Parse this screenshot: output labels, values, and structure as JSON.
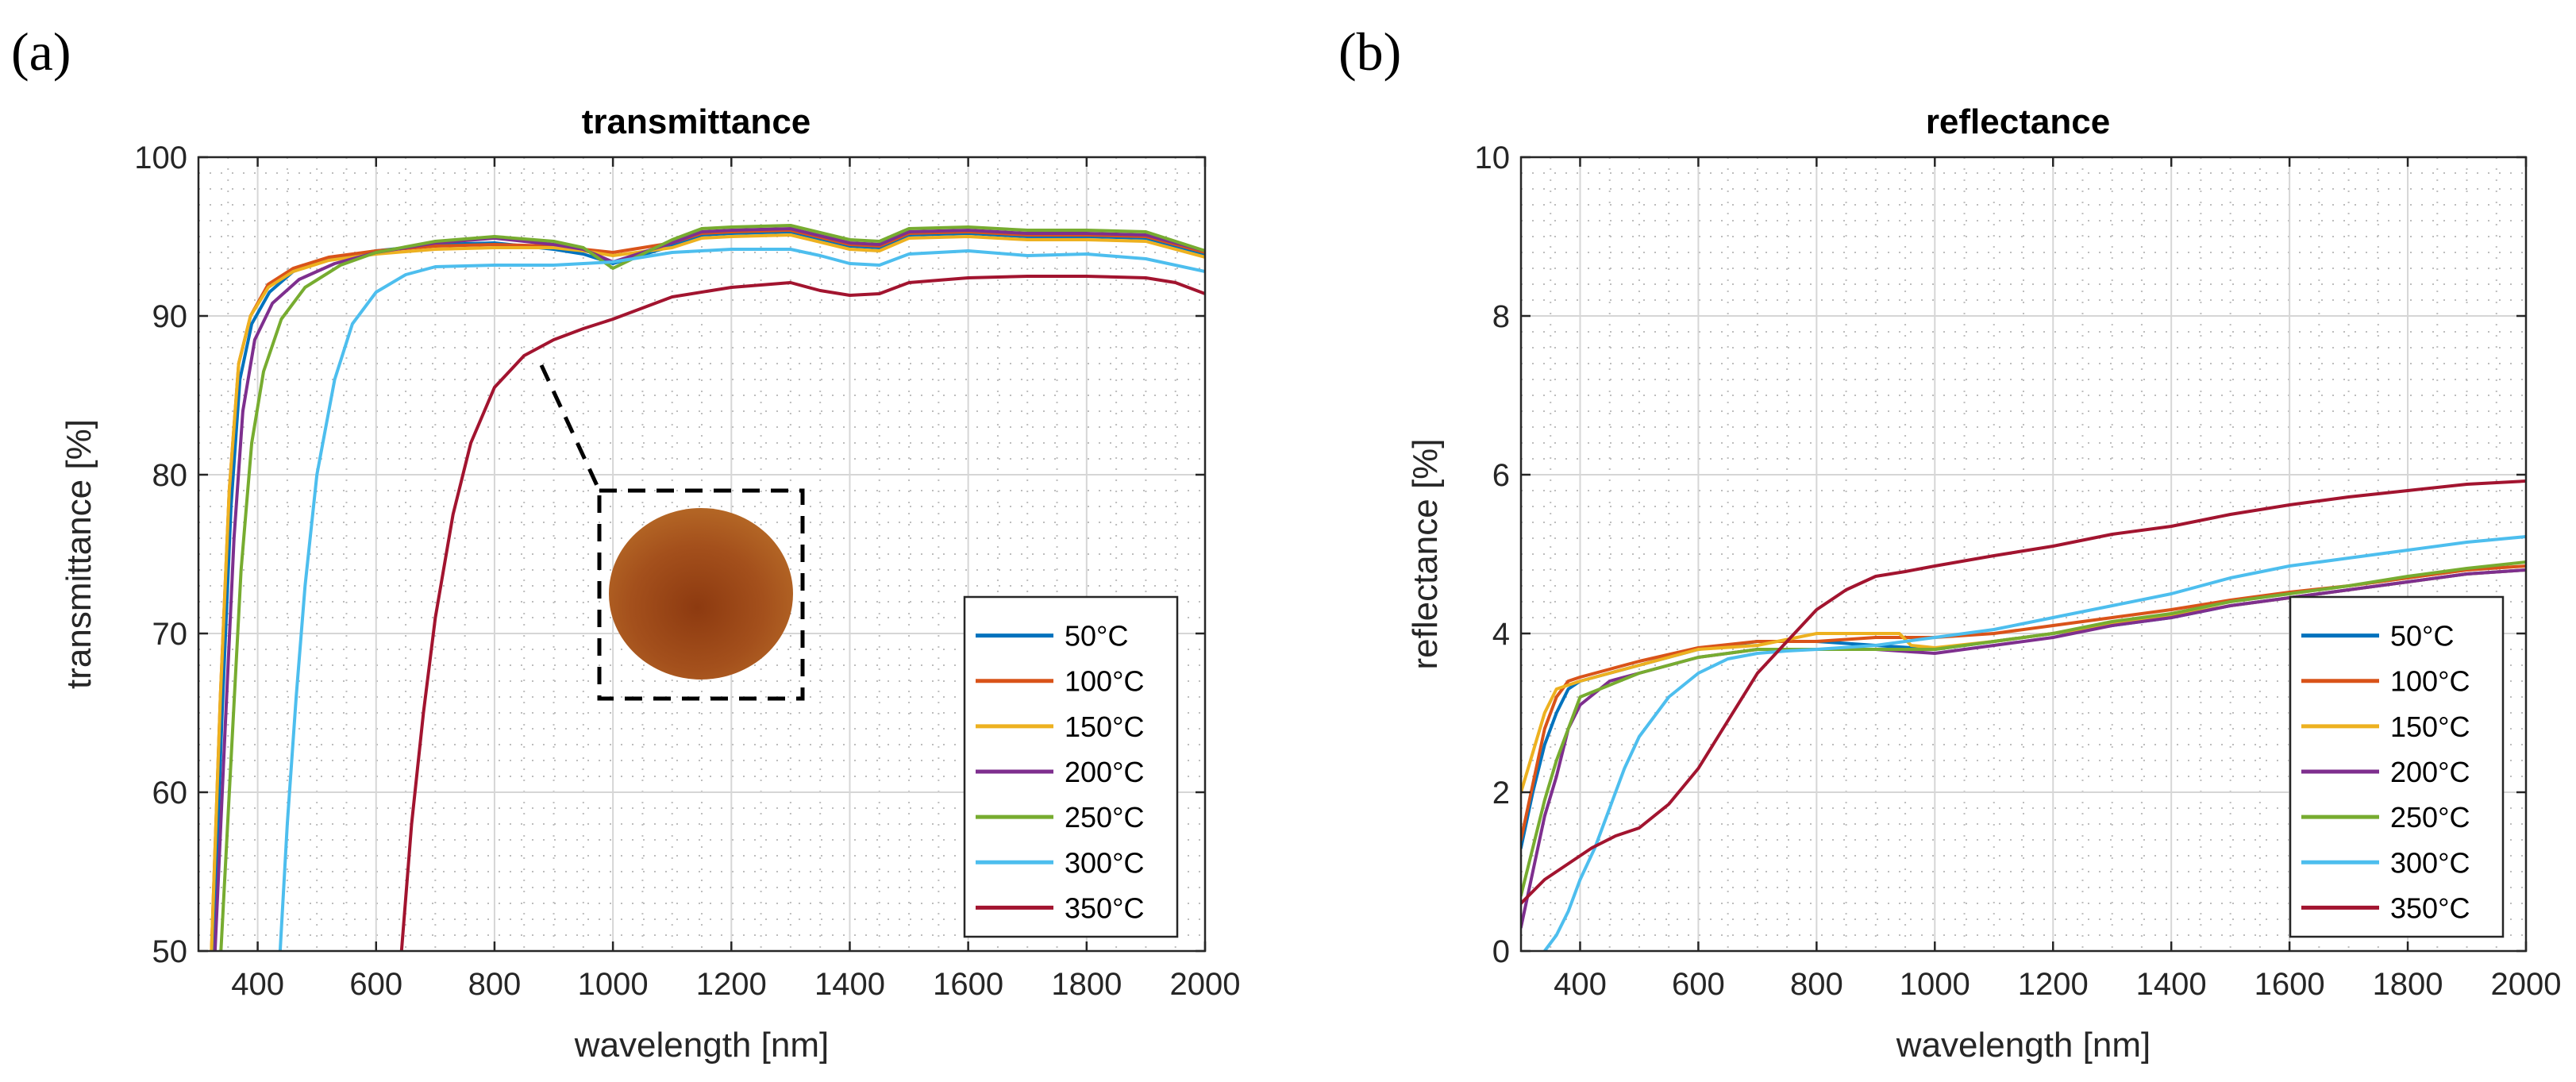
{
  "panels": {
    "a_label": "(a)",
    "b_label": "(b)"
  },
  "colors": {
    "50°C": "#0072bd",
    "100°C": "#d95319",
    "150°C": "#edb120",
    "200°C": "#7e2f8e",
    "250°C": "#77ac30",
    "300°C": "#4dbeee",
    "350°C": "#a2142f"
  },
  "chart_data": [
    {
      "type": "line",
      "title": "transmittance",
      "xlabel": "wavelength [nm]",
      "ylabel": "transmittance [%]",
      "xlim": [
        300,
        2000
      ],
      "ylim": [
        50,
        100
      ],
      "xticks": [
        400,
        600,
        800,
        1000,
        1200,
        1400,
        1600,
        1800,
        2000
      ],
      "yticks": [
        50,
        60,
        70,
        80,
        90,
        100
      ],
      "legend_position": "bottom-right",
      "inset": "photo of reddish-brown circular film sample",
      "series": [
        {
          "name": "50°C",
          "x": [
            325,
            340,
            355,
            370,
            390,
            420,
            460,
            520,
            600,
            700,
            800,
            900,
            950,
            1000,
            1100,
            1150,
            1200,
            1300,
            1400,
            1450,
            1500,
            1600,
            1700,
            1800,
            1900,
            2000
          ],
          "y": [
            50,
            65,
            78,
            86,
            89.5,
            91.5,
            92.8,
            93.6,
            94.1,
            94.5,
            94.6,
            94.2,
            93.9,
            93.3,
            94.4,
            95.1,
            95.2,
            95.3,
            94.4,
            94.3,
            95.1,
            95.2,
            95,
            95,
            94.9,
            93.9
          ]
        },
        {
          "name": "100°C",
          "x": [
            322,
            337,
            352,
            368,
            388,
            418,
            460,
            520,
            600,
            700,
            800,
            900,
            950,
            1000,
            1100,
            1150,
            1200,
            1300,
            1400,
            1450,
            1500,
            1600,
            1700,
            1800,
            1900,
            2000
          ],
          "y": [
            50,
            66,
            79,
            87,
            90,
            92,
            93,
            93.7,
            94.1,
            94.4,
            94.5,
            94.4,
            94.2,
            94,
            94.6,
            95.2,
            95.3,
            95.4,
            94.5,
            94.4,
            95.2,
            95.3,
            95.1,
            95.1,
            95,
            94
          ]
        },
        {
          "name": "150°C",
          "x": [
            322,
            337,
            352,
            368,
            388,
            418,
            460,
            520,
            600,
            700,
            800,
            900,
            950,
            1000,
            1100,
            1150,
            1200,
            1300,
            1400,
            1450,
            1500,
            1600,
            1700,
            1800,
            1900,
            2000
          ],
          "y": [
            50,
            66,
            79,
            87,
            90,
            91.8,
            92.8,
            93.5,
            93.9,
            94.2,
            94.3,
            94.3,
            94.1,
            93.8,
            94.3,
            94.9,
            95,
            95.1,
            94.2,
            94.1,
            94.9,
            95,
            94.8,
            94.8,
            94.7,
            93.7
          ]
        },
        {
          "name": "200°C",
          "x": [
            328,
            345,
            360,
            375,
            395,
            425,
            470,
            530,
            600,
            700,
            800,
            900,
            950,
            1000,
            1100,
            1150,
            1200,
            1300,
            1400,
            1450,
            1500,
            1600,
            1700,
            1800,
            1900,
            2000
          ],
          "y": [
            50,
            64,
            76,
            84,
            88.5,
            90.8,
            92.3,
            93.3,
            94,
            94.6,
            94.9,
            94.5,
            94.2,
            93.4,
            94.6,
            95.3,
            95.4,
            95.5,
            94.6,
            94.5,
            95.3,
            95.4,
            95.2,
            95.2,
            95.1,
            94.1
          ]
        },
        {
          "name": "250°C",
          "x": [
            338,
            355,
            372,
            390,
            410,
            440,
            480,
            540,
            600,
            700,
            800,
            900,
            950,
            1000,
            1100,
            1150,
            1200,
            1300,
            1400,
            1450,
            1500,
            1600,
            1700,
            1800,
            1900,
            2000
          ],
          "y": [
            50,
            62,
            74,
            82,
            86.5,
            89.8,
            91.8,
            93.2,
            94,
            94.7,
            95,
            94.7,
            94.3,
            93,
            94.8,
            95.5,
            95.6,
            95.7,
            94.8,
            94.7,
            95.5,
            95.6,
            95.4,
            95.4,
            95.3,
            94.1
          ]
        },
        {
          "name": "300°C",
          "x": [
            438,
            450,
            465,
            480,
            500,
            530,
            560,
            600,
            650,
            700,
            800,
            900,
            950,
            1000,
            1100,
            1200,
            1300,
            1350,
            1400,
            1450,
            1500,
            1600,
            1700,
            1800,
            1900,
            2000
          ],
          "y": [
            50,
            58,
            66,
            73,
            80,
            86,
            89.5,
            91.5,
            92.6,
            93.1,
            93.2,
            93.2,
            93.3,
            93.4,
            94,
            94.2,
            94.2,
            93.8,
            93.3,
            93.2,
            93.9,
            94.1,
            93.8,
            93.9,
            93.6,
            92.8
          ]
        },
        {
          "name": "350°C",
          "x": [
            643,
            660,
            680,
            700,
            730,
            760,
            800,
            850,
            900,
            950,
            1000,
            1100,
            1200,
            1300,
            1350,
            1400,
            1450,
            1500,
            1600,
            1700,
            1800,
            1900,
            1950,
            2000
          ],
          "y": [
            50,
            58,
            65,
            71,
            77.5,
            82,
            85.5,
            87.5,
            88.5,
            89.2,
            89.8,
            91.2,
            91.8,
            92.1,
            91.6,
            91.3,
            91.4,
            92.1,
            92.4,
            92.5,
            92.5,
            92.4,
            92.1,
            91.4
          ]
        }
      ]
    },
    {
      "type": "line",
      "title": "reflectance",
      "xlabel": "wavelength [nm]",
      "ylabel": "reflectance [%]",
      "xlim": [
        300,
        2000
      ],
      "ylim": [
        0,
        10
      ],
      "xticks": [
        400,
        600,
        800,
        1000,
        1200,
        1400,
        1600,
        1800,
        2000
      ],
      "yticks": [
        0,
        2,
        4,
        6,
        8,
        10
      ],
      "legend_position": "bottom-right",
      "series": [
        {
          "name": "50°C",
          "x": [
            300,
            320,
            340,
            360,
            380,
            400,
            450,
            500,
            600,
            700,
            800,
            900,
            1000,
            1100,
            1200,
            1300,
            1400,
            1500,
            1600,
            1700,
            1800,
            1900,
            2000
          ],
          "y": [
            1.3,
            2.0,
            2.6,
            3.0,
            3.3,
            3.4,
            3.5,
            3.6,
            3.8,
            3.9,
            3.9,
            3.85,
            3.8,
            3.9,
            4.0,
            4.1,
            4.2,
            4.35,
            4.45,
            4.55,
            4.65,
            4.75,
            4.8
          ]
        },
        {
          "name": "100°C",
          "x": [
            300,
            320,
            340,
            360,
            380,
            400,
            450,
            500,
            600,
            700,
            800,
            900,
            1000,
            1100,
            1200,
            1300,
            1400,
            1500,
            1600,
            1700,
            1800,
            1900,
            2000
          ],
          "y": [
            1.4,
            2.1,
            2.8,
            3.2,
            3.4,
            3.45,
            3.55,
            3.65,
            3.82,
            3.9,
            3.9,
            3.95,
            3.95,
            4.0,
            4.1,
            4.2,
            4.3,
            4.42,
            4.52,
            4.6,
            4.7,
            4.8,
            4.85
          ]
        },
        {
          "name": "150°C",
          "x": [
            300,
            320,
            340,
            360,
            380,
            400,
            450,
            500,
            600,
            700,
            800,
            900,
            940,
            960,
            1000,
            1100,
            1200,
            1300,
            1400,
            1500,
            1600,
            1700,
            1800,
            1900,
            2000
          ],
          "y": [
            2.0,
            2.5,
            3.0,
            3.3,
            3.35,
            3.4,
            3.5,
            3.6,
            3.8,
            3.85,
            4.0,
            4.0,
            4.0,
            3.85,
            3.82,
            3.9,
            4.0,
            4.12,
            4.22,
            4.35,
            4.45,
            4.55,
            4.65,
            4.75,
            4.8
          ]
        },
        {
          "name": "200°C",
          "x": [
            300,
            320,
            340,
            360,
            380,
            400,
            450,
            500,
            600,
            700,
            800,
            900,
            1000,
            1100,
            1200,
            1300,
            1400,
            1500,
            1600,
            1700,
            1800,
            1900,
            2000
          ],
          "y": [
            0.3,
            1.0,
            1.7,
            2.2,
            2.8,
            3.1,
            3.4,
            3.5,
            3.7,
            3.8,
            3.8,
            3.8,
            3.75,
            3.85,
            3.95,
            4.1,
            4.2,
            4.35,
            4.45,
            4.55,
            4.65,
            4.75,
            4.8
          ]
        },
        {
          "name": "250°C",
          "x": [
            300,
            320,
            340,
            360,
            380,
            400,
            450,
            500,
            600,
            700,
            800,
            900,
            1000,
            1100,
            1200,
            1300,
            1400,
            1500,
            1600,
            1700,
            1800,
            1900,
            2000
          ],
          "y": [
            0.7,
            1.3,
            1.9,
            2.4,
            2.8,
            3.2,
            3.35,
            3.5,
            3.7,
            3.8,
            3.8,
            3.8,
            3.8,
            3.9,
            4.0,
            4.15,
            4.25,
            4.4,
            4.5,
            4.6,
            4.72,
            4.82,
            4.9
          ]
        },
        {
          "name": "300°C",
          "x": [
            340,
            360,
            380,
            400,
            425,
            450,
            475,
            500,
            550,
            600,
            650,
            700,
            750,
            800,
            900,
            1000,
            1100,
            1200,
            1300,
            1400,
            1500,
            1600,
            1700,
            1800,
            1900,
            2000
          ],
          "y": [
            0,
            0.2,
            0.5,
            0.9,
            1.3,
            1.8,
            2.3,
            2.7,
            3.2,
            3.5,
            3.68,
            3.75,
            3.78,
            3.8,
            3.85,
            3.95,
            4.05,
            4.2,
            4.35,
            4.5,
            4.7,
            4.85,
            4.95,
            5.05,
            5.15,
            5.22
          ]
        },
        {
          "name": "350°C",
          "x": [
            300,
            340,
            380,
            420,
            460,
            500,
            550,
            600,
            650,
            700,
            750,
            800,
            850,
            900,
            950,
            1000,
            1100,
            1200,
            1300,
            1400,
            1500,
            1600,
            1700,
            1800,
            1900,
            2000
          ],
          "y": [
            0.6,
            0.9,
            1.1,
            1.3,
            1.45,
            1.55,
            1.85,
            2.3,
            2.9,
            3.5,
            3.9,
            4.3,
            4.55,
            4.72,
            4.78,
            4.85,
            4.98,
            5.1,
            5.25,
            5.35,
            5.5,
            5.62,
            5.72,
            5.8,
            5.88,
            5.92
          ]
        }
      ]
    }
  ]
}
